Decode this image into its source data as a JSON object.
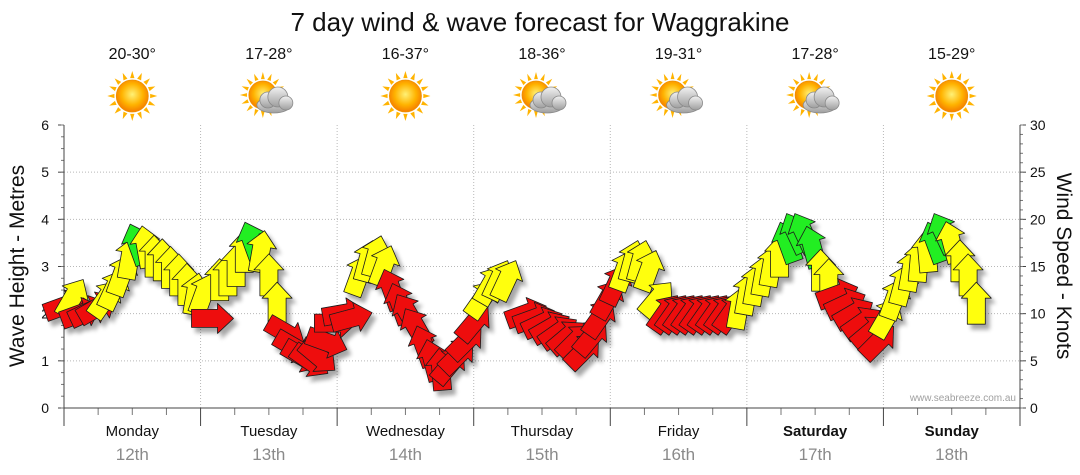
{
  "chart_data": {
    "type": "line",
    "title": "7 day wind & wave forecast for Waggrakine",
    "ylabel_left": "Wave Height - Metres",
    "ylabel_right": "Wind Speed - Knots",
    "ylim_left": [
      0,
      6
    ],
    "ylim_right": [
      0,
      30
    ],
    "yticks_left": [
      "0",
      "1",
      "2",
      "3",
      "4",
      "5",
      "6"
    ],
    "yticks_right": [
      "0",
      "5",
      "10",
      "15",
      "20",
      "25",
      "30"
    ],
    "grid": true,
    "watermark": "www.seabreeze.com.au",
    "legend_colors": {
      "offshore": "#22ee22",
      "cross": "#ffff11",
      "onshore": "#ee1111"
    },
    "days": [
      {
        "name": "Monday",
        "date": "12th",
        "temp": "20-30°",
        "icon": "sun-icon",
        "bold": false
      },
      {
        "name": "Tuesday",
        "date": "13th",
        "temp": "17-28°",
        "icon": "sun-cloud-icon",
        "bold": false
      },
      {
        "name": "Wednesday",
        "date": "14th",
        "temp": "16-37°",
        "icon": "sun-icon",
        "bold": false
      },
      {
        "name": "Thursday",
        "date": "15th",
        "temp": "18-36°",
        "icon": "sun-cloud-icon",
        "bold": false
      },
      {
        "name": "Friday",
        "date": "16th",
        "temp": "19-31°",
        "icon": "sun-cloud-icon",
        "bold": false
      },
      {
        "name": "Saturday",
        "date": "17th",
        "temp": "17-28°",
        "icon": "sun-cloud-icon",
        "bold": true
      },
      {
        "name": "Sunday",
        "date": "18th",
        "temp": "15-29°",
        "icon": "sun-icon",
        "bold": true
      }
    ],
    "wind_series": {
      "name": "Wind speed (knots) / direction",
      "points": [
        {
          "x": 0.0,
          "kts": 10.8,
          "dir": 250,
          "c": "R"
        },
        {
          "x": 0.09,
          "kts": 11.6,
          "dir": 210,
          "c": "Y"
        },
        {
          "x": 0.18,
          "kts": 10.0,
          "dir": 250,
          "c": "R"
        },
        {
          "x": 0.27,
          "kts": 10.2,
          "dir": 245,
          "c": "R"
        },
        {
          "x": 0.36,
          "kts": 10.6,
          "dir": 240,
          "c": "R"
        },
        {
          "x": 0.45,
          "kts": 11.5,
          "dir": 215,
          "c": "Y"
        },
        {
          "x": 0.54,
          "kts": 12.5,
          "dir": 205,
          "c": "Y"
        },
        {
          "x": 0.63,
          "kts": 14.0,
          "dir": 200,
          "c": "Y"
        },
        {
          "x": 0.72,
          "kts": 15.8,
          "dir": 190,
          "c": "Y"
        },
        {
          "x": 0.81,
          "kts": 17.3,
          "dir": 160,
          "c": "G"
        },
        {
          "x": 0.9,
          "kts": 17.0,
          "dir": 170,
          "c": "Y"
        },
        {
          "x": 0.99,
          "kts": 16.0,
          "dir": 180,
          "c": "Y"
        },
        {
          "x": 1.08,
          "kts": 15.6,
          "dir": 180,
          "c": "Y"
        },
        {
          "x": 1.17,
          "kts": 14.8,
          "dir": 180,
          "c": "Y"
        },
        {
          "x": 1.26,
          "kts": 14.0,
          "dir": 180,
          "c": "Y"
        },
        {
          "x": 1.35,
          "kts": 13.0,
          "dir": 180,
          "c": "Y"
        },
        {
          "x": 1.44,
          "kts": 12.0,
          "dir": 190,
          "c": "Y"
        },
        {
          "x": 1.53,
          "kts": 12.0,
          "dir": 200,
          "c": "Y"
        },
        {
          "x": 1.62,
          "kts": 9.5,
          "dir": 270,
          "c": "R"
        },
        {
          "x": 1.71,
          "kts": 13.5,
          "dir": 180,
          "c": "Y"
        },
        {
          "x": 1.8,
          "kts": 14.0,
          "dir": 180,
          "c": "Y"
        },
        {
          "x": 1.89,
          "kts": 15.0,
          "dir": 180,
          "c": "Y"
        },
        {
          "x": 1.98,
          "kts": 16.5,
          "dir": 180,
          "c": "Y"
        },
        {
          "x": 2.07,
          "kts": 17.5,
          "dir": 160,
          "c": "G"
        },
        {
          "x": 2.16,
          "kts": 16.5,
          "dir": 190,
          "c": "Y"
        },
        {
          "x": 2.25,
          "kts": 14.0,
          "dir": 180,
          "c": "Y"
        },
        {
          "x": 2.34,
          "kts": 11.0,
          "dir": 180,
          "c": "Y"
        },
        {
          "x": 2.43,
          "kts": 8.0,
          "dir": 300,
          "c": "R"
        },
        {
          "x": 2.52,
          "kts": 6.5,
          "dir": 300,
          "c": "R"
        },
        {
          "x": 2.61,
          "kts": 5.5,
          "dir": 300,
          "c": "R"
        },
        {
          "x": 2.7,
          "kts": 5.0,
          "dir": 305,
          "c": "R"
        },
        {
          "x": 2.79,
          "kts": 5.5,
          "dir": 310,
          "c": "R"
        },
        {
          "x": 2.88,
          "kts": 7.0,
          "dir": 290,
          "c": "R"
        },
        {
          "x": 2.97,
          "kts": 9.0,
          "dir": 270,
          "c": "R"
        },
        {
          "x": 3.06,
          "kts": 10.0,
          "dir": 260,
          "c": "R"
        },
        {
          "x": 3.15,
          "kts": 9.5,
          "dir": 255,
          "c": "R"
        },
        {
          "x": 3.24,
          "kts": 14.0,
          "dir": 200,
          "c": "Y"
        },
        {
          "x": 3.33,
          "kts": 15.5,
          "dir": 195,
          "c": "Y"
        },
        {
          "x": 3.42,
          "kts": 16.0,
          "dir": 195,
          "c": "Y"
        },
        {
          "x": 3.51,
          "kts": 15.0,
          "dir": 200,
          "c": "Y"
        },
        {
          "x": 3.6,
          "kts": 12.5,
          "dir": 160,
          "c": "R"
        },
        {
          "x": 3.69,
          "kts": 11.0,
          "dir": 160,
          "c": "R"
        },
        {
          "x": 3.78,
          "kts": 10.0,
          "dir": 150,
          "c": "R"
        },
        {
          "x": 3.87,
          "kts": 8.5,
          "dir": 150,
          "c": "R"
        },
        {
          "x": 3.96,
          "kts": 6.5,
          "dir": 160,
          "c": "R"
        },
        {
          "x": 4.05,
          "kts": 5.0,
          "dir": 165,
          "c": "R"
        },
        {
          "x": 4.14,
          "kts": 4.0,
          "dir": 175,
          "c": "R"
        },
        {
          "x": 4.23,
          "kts": 4.5,
          "dir": 220,
          "c": "R"
        },
        {
          "x": 4.32,
          "kts": 5.5,
          "dir": 225,
          "c": "R"
        },
        {
          "x": 4.41,
          "kts": 7.0,
          "dir": 225,
          "c": "R"
        },
        {
          "x": 4.5,
          "kts": 9.0,
          "dir": 220,
          "c": "R"
        },
        {
          "x": 4.59,
          "kts": 11.5,
          "dir": 215,
          "c": "Y"
        },
        {
          "x": 4.68,
          "kts": 13.0,
          "dir": 210,
          "c": "Y"
        },
        {
          "x": 4.77,
          "kts": 13.5,
          "dir": 205,
          "c": "Y"
        },
        {
          "x": 4.86,
          "kts": 13.5,
          "dir": 205,
          "c": "Y"
        },
        {
          "x": 5.07,
          "kts": 10.0,
          "dir": 250,
          "c": "R"
        },
        {
          "x": 5.16,
          "kts": 9.5,
          "dir": 250,
          "c": "R"
        },
        {
          "x": 5.25,
          "kts": 9.0,
          "dir": 245,
          "c": "R"
        },
        {
          "x": 5.34,
          "kts": 8.5,
          "dir": 240,
          "c": "R"
        },
        {
          "x": 5.43,
          "kts": 8.0,
          "dir": 235,
          "c": "R"
        },
        {
          "x": 5.52,
          "kts": 7.5,
          "dir": 230,
          "c": "R"
        },
        {
          "x": 5.61,
          "kts": 7.0,
          "dir": 225,
          "c": "R"
        },
        {
          "x": 5.7,
          "kts": 6.0,
          "dir": 225,
          "c": "R"
        },
        {
          "x": 5.79,
          "kts": 7.5,
          "dir": 220,
          "c": "R"
        },
        {
          "x": 5.88,
          "kts": 9.5,
          "dir": 215,
          "c": "R"
        },
        {
          "x": 5.97,
          "kts": 11.5,
          "dir": 210,
          "c": "R"
        },
        {
          "x": 6.06,
          "kts": 13.0,
          "dir": 205,
          "c": "R"
        },
        {
          "x": 6.15,
          "kts": 14.5,
          "dir": 200,
          "c": "Y"
        },
        {
          "x": 6.24,
          "kts": 15.5,
          "dir": 195,
          "c": "Y"
        },
        {
          "x": 6.33,
          "kts": 15.5,
          "dir": 195,
          "c": "Y"
        },
        {
          "x": 6.42,
          "kts": 14.5,
          "dir": 200,
          "c": "Y"
        },
        {
          "x": 6.51,
          "kts": 11.5,
          "dir": 220,
          "c": "Y"
        },
        {
          "x": 6.6,
          "kts": 10.0,
          "dir": 215,
          "c": "R"
        },
        {
          "x": 6.69,
          "kts": 10.0,
          "dir": 215,
          "c": "R"
        },
        {
          "x": 6.78,
          "kts": 10.0,
          "dir": 215,
          "c": "R"
        },
        {
          "x": 6.87,
          "kts": 10.0,
          "dir": 215,
          "c": "R"
        },
        {
          "x": 6.96,
          "kts": 10.0,
          "dir": 215,
          "c": "R"
        },
        {
          "x": 7.05,
          "kts": 10.0,
          "dir": 215,
          "c": "R"
        },
        {
          "x": 7.14,
          "kts": 10.0,
          "dir": 215,
          "c": "R"
        },
        {
          "x": 7.23,
          "kts": 10.0,
          "dir": 215,
          "c": "R"
        },
        {
          "x": 7.32,
          "kts": 10.0,
          "dir": 215,
          "c": "R"
        },
        {
          "x": 7.41,
          "kts": 10.5,
          "dir": 190,
          "c": "Y"
        },
        {
          "x": 7.5,
          "kts": 12.0,
          "dir": 190,
          "c": "Y"
        },
        {
          "x": 7.59,
          "kts": 13.0,
          "dir": 190,
          "c": "Y"
        },
        {
          "x": 7.68,
          "kts": 14.0,
          "dir": 190,
          "c": "Y"
        },
        {
          "x": 7.77,
          "kts": 15.0,
          "dir": 190,
          "c": "Y"
        },
        {
          "x": 7.86,
          "kts": 16.0,
          "dir": 180,
          "c": "Y"
        },
        {
          "x": 7.95,
          "kts": 17.5,
          "dir": 160,
          "c": "G"
        },
        {
          "x": 8.04,
          "kts": 18.5,
          "dir": 155,
          "c": "G"
        },
        {
          "x": 8.13,
          "kts": 18.5,
          "dir": 155,
          "c": "G"
        },
        {
          "x": 8.22,
          "kts": 17.0,
          "dir": 165,
          "c": "G"
        },
        {
          "x": 8.31,
          "kts": 14.5,
          "dir": 180,
          "c": "Y"
        },
        {
          "x": 8.4,
          "kts": 13.5,
          "dir": 180,
          "c": "Y"
        },
        {
          "x": 8.49,
          "kts": 12.0,
          "dir": 250,
          "c": "R"
        },
        {
          "x": 8.58,
          "kts": 11.0,
          "dir": 245,
          "c": "R"
        },
        {
          "x": 8.67,
          "kts": 10.0,
          "dir": 240,
          "c": "R"
        },
        {
          "x": 8.76,
          "kts": 9.0,
          "dir": 235,
          "c": "R"
        },
        {
          "x": 8.85,
          "kts": 8.0,
          "dir": 230,
          "c": "R"
        },
        {
          "x": 8.94,
          "kts": 7.0,
          "dir": 225,
          "c": "R"
        },
        {
          "x": 9.03,
          "kts": 9.5,
          "dir": 210,
          "c": "Y"
        },
        {
          "x": 9.12,
          "kts": 11.5,
          "dir": 200,
          "c": "Y"
        },
        {
          "x": 9.21,
          "kts": 13.0,
          "dir": 195,
          "c": "Y"
        },
        {
          "x": 9.3,
          "kts": 14.5,
          "dir": 190,
          "c": "Y"
        },
        {
          "x": 9.39,
          "kts": 15.5,
          "dir": 185,
          "c": "Y"
        },
        {
          "x": 9.48,
          "kts": 16.5,
          "dir": 175,
          "c": "Y"
        },
        {
          "x": 9.57,
          "kts": 17.5,
          "dir": 160,
          "c": "G"
        },
        {
          "x": 9.66,
          "kts": 18.5,
          "dir": 155,
          "c": "G"
        },
        {
          "x": 9.75,
          "kts": 17.5,
          "dir": 165,
          "c": "Y"
        },
        {
          "x": 9.84,
          "kts": 15.5,
          "dir": 180,
          "c": "Y"
        },
        {
          "x": 9.93,
          "kts": 14.0,
          "dir": 180,
          "c": "Y"
        },
        {
          "x": 10.02,
          "kts": 11.0,
          "dir": 180,
          "c": "Y"
        }
      ]
    }
  }
}
